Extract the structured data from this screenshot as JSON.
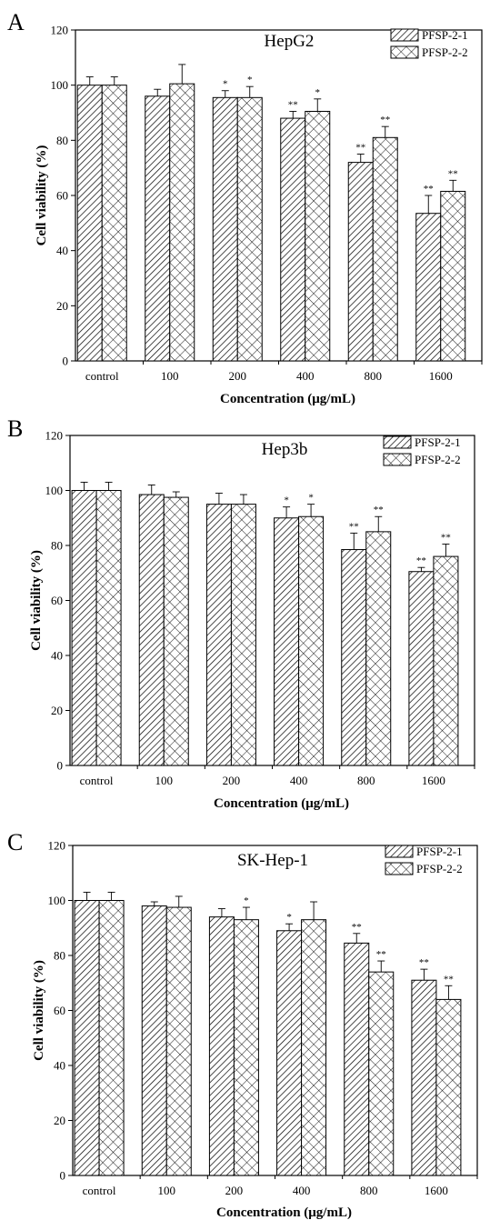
{
  "chart_data": [
    {
      "type": "bar",
      "panel_label": "A",
      "title": "HepG2",
      "xlabel": "Concentration (μg/mL)",
      "ylabel": "Cell viability (%)",
      "ylim": [
        0,
        120
      ],
      "yticks": [
        0,
        20,
        40,
        60,
        80,
        100,
        120
      ],
      "categories": [
        "control",
        "100",
        "200",
        "400",
        "800",
        "1600"
      ],
      "legend_position": "top-right",
      "series": [
        {
          "name": "PFSP-2-1",
          "pattern": "diagonal-hatch",
          "values": [
            100,
            96,
            95.5,
            88,
            72,
            53.5
          ],
          "errors": [
            3,
            2.5,
            2.5,
            2.5,
            3,
            6.5
          ],
          "significance": [
            "",
            "",
            "*",
            "**",
            "**",
            "**"
          ]
        },
        {
          "name": "PFSP-2-2",
          "pattern": "crosshatch",
          "values": [
            100,
            100.5,
            95.5,
            90.5,
            81,
            61.5
          ],
          "errors": [
            3,
            7,
            4,
            4.5,
            4,
            4
          ],
          "significance": [
            "",
            "",
            "*",
            "*",
            "**",
            "**"
          ]
        }
      ]
    },
    {
      "type": "bar",
      "panel_label": "B",
      "title": "Hep3b",
      "xlabel": "Concentration (μg/mL)",
      "ylabel": "Cell viability (%)",
      "ylim": [
        0,
        120
      ],
      "yticks": [
        0,
        20,
        40,
        60,
        80,
        100,
        120
      ],
      "categories": [
        "control",
        "100",
        "200",
        "400",
        "800",
        "1600"
      ],
      "legend_position": "top-right",
      "series": [
        {
          "name": "PFSP-2-1",
          "pattern": "diagonal-hatch",
          "values": [
            100,
            98.5,
            95,
            90,
            78.5,
            70.5
          ],
          "errors": [
            3,
            3.5,
            4,
            4,
            6,
            1.5
          ],
          "significance": [
            "",
            "",
            "",
            "*",
            "**",
            "**"
          ]
        },
        {
          "name": "PFSP-2-2",
          "pattern": "crosshatch",
          "values": [
            100,
            97.5,
            95,
            90.5,
            85,
            76
          ],
          "errors": [
            3,
            2,
            3.5,
            4.5,
            5.5,
            4.5
          ],
          "significance": [
            "",
            "",
            "",
            "*",
            "**",
            "**"
          ]
        }
      ]
    },
    {
      "type": "bar",
      "panel_label": "C",
      "title": "SK-Hep-1",
      "xlabel": "Concentration (μg/mL)",
      "ylabel": "Cell viability (%)",
      "ylim": [
        0,
        120
      ],
      "yticks": [
        0,
        20,
        40,
        60,
        80,
        100,
        120
      ],
      "categories": [
        "control",
        "100",
        "200",
        "400",
        "800",
        "1600"
      ],
      "legend_position": "top-right",
      "series": [
        {
          "name": "PFSP-2-1",
          "pattern": "diagonal-hatch",
          "values": [
            100,
            98,
            94,
            89,
            84.5,
            71
          ],
          "errors": [
            3,
            1.5,
            3,
            2.5,
            3.5,
            4
          ],
          "significance": [
            "",
            "",
            "",
            "*",
            "**",
            "**"
          ]
        },
        {
          "name": "PFSP-2-2",
          "pattern": "crosshatch",
          "values": [
            100,
            97.5,
            93,
            93,
            74,
            64
          ],
          "errors": [
            3,
            4,
            4.5,
            6.5,
            4,
            5
          ],
          "significance": [
            "",
            "",
            "*",
            "",
            "**",
            "**"
          ]
        }
      ]
    }
  ]
}
